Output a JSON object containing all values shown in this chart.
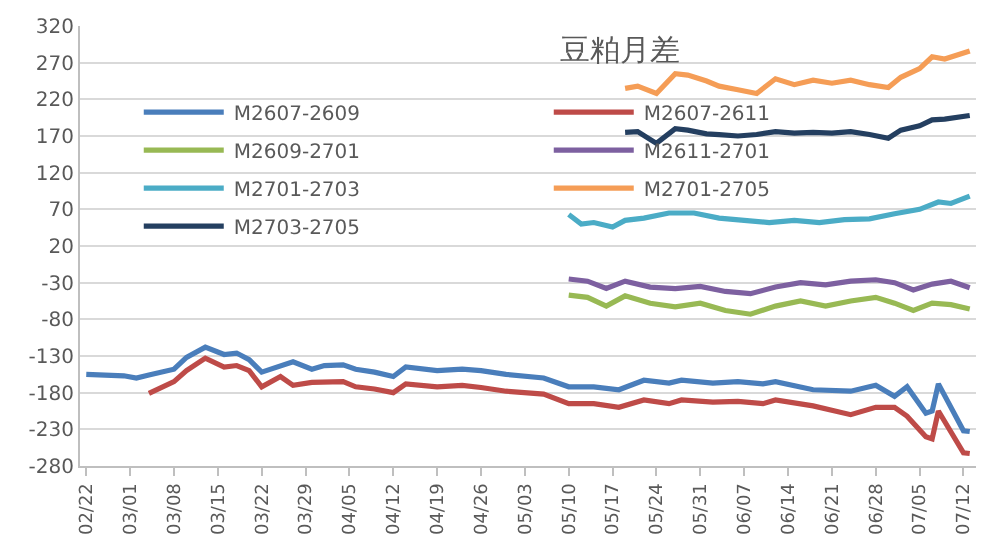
{
  "chart_data": {
    "type": "line",
    "title": "豆粕月差",
    "ylim": [
      -280,
      320
    ],
    "yticks": [
      -280,
      -230,
      -180,
      -130,
      -80,
      -30,
      20,
      70,
      120,
      170,
      220,
      270,
      320
    ],
    "xlim": [
      "--02-21",
      "--07-14"
    ],
    "xticks": [
      {
        "value": "--02-22",
        "label": "02/22"
      },
      {
        "value": "--03-01",
        "label": "03/01"
      },
      {
        "value": "--03-08",
        "label": "03/08"
      },
      {
        "value": "--03-15",
        "label": "03/15"
      },
      {
        "value": "--03-22",
        "label": "03/22"
      },
      {
        "value": "--03-29",
        "label": "03/29"
      },
      {
        "value": "--04-05",
        "label": "04/05"
      },
      {
        "value": "--04-12",
        "label": "04/12"
      },
      {
        "value": "--04-19",
        "label": "04/19"
      },
      {
        "value": "--04-26",
        "label": "04/26"
      },
      {
        "value": "--05-03",
        "label": "05/03"
      },
      {
        "value": "--05-10",
        "label": "05/10"
      },
      {
        "value": "--05-17",
        "label": "05/17"
      },
      {
        "value": "--05-24",
        "label": "05/24"
      },
      {
        "value": "--05-31",
        "label": "05/31"
      },
      {
        "value": "--06-07",
        "label": "06/07"
      },
      {
        "value": "--06-14",
        "label": "06/14"
      },
      {
        "value": "--06-21",
        "label": "06/21"
      },
      {
        "value": "--06-28",
        "label": "06/28"
      },
      {
        "value": "--07-05",
        "label": "07/05"
      },
      {
        "value": "--07-12",
        "label": "07/12"
      }
    ],
    "grid": "y",
    "legend": "top left",
    "marker": "none",
    "line_style": "solid",
    "series": [
      {
        "name": "M2607-2609",
        "color": "#4a7ebb",
        "x": [
          "--02-22",
          "--02-25",
          "--02-28",
          "--03-02",
          "--03-04",
          "--03-08",
          "--03-10",
          "--03-13",
          "--03-16",
          "--03-18",
          "--03-20",
          "--03-22",
          "--03-27",
          "--03-30",
          "--04-01",
          "--04-04",
          "--04-06",
          "--04-09",
          "--04-12",
          "--04-14",
          "--04-19",
          "--04-23",
          "--04-26",
          "--04-30",
          "--05-06",
          "--05-10",
          "--05-14",
          "--05-18",
          "--05-22",
          "--05-26",
          "--05-28",
          "--06-02",
          "--06-06",
          "--06-10",
          "--06-12",
          "--06-18",
          "--06-24",
          "--06-28",
          "--07-01",
          "--07-03",
          "--07-06",
          "--07-07",
          "--07-08",
          "--07-12",
          "--07-13"
        ],
        "values": [
          -155,
          -156,
          -157,
          -160,
          -156,
          -148,
          -132,
          -118,
          -128,
          -126,
          -135,
          -152,
          -138,
          -148,
          -143,
          -142,
          -148,
          -152,
          -158,
          -145,
          -150,
          -148,
          -150,
          -155,
          -160,
          -172,
          -172,
          -176,
          -163,
          -167,
          -163,
          -167,
          -165,
          -168,
          -165,
          -176,
          -178,
          -170,
          -185,
          -172,
          -208,
          -205,
          -168,
          -232,
          -233
        ]
      },
      {
        "name": "M2607-2611",
        "color": "#be4b48",
        "x": [
          "--03-04",
          "--03-08",
          "--03-10",
          "--03-13",
          "--03-16",
          "--03-18",
          "--03-20",
          "--03-22",
          "--03-25",
          "--03-27",
          "--03-30",
          "--04-04",
          "--04-06",
          "--04-09",
          "--04-12",
          "--04-14",
          "--04-19",
          "--04-23",
          "--04-26",
          "--04-30",
          "--05-06",
          "--05-10",
          "--05-14",
          "--05-18",
          "--05-22",
          "--05-26",
          "--05-28",
          "--06-02",
          "--06-06",
          "--06-10",
          "--06-12",
          "--06-18",
          "--06-24",
          "--06-28",
          "--07-01",
          "--07-03",
          "--07-06",
          "--07-07",
          "--07-08",
          "--07-12",
          "--07-13"
        ],
        "values": [
          -181,
          -165,
          -150,
          -133,
          -145,
          -143,
          -150,
          -172,
          -158,
          -170,
          -166,
          -165,
          -172,
          -175,
          -180,
          -168,
          -172,
          -170,
          -173,
          -178,
          -182,
          -195,
          -195,
          -200,
          -190,
          -195,
          -190,
          -193,
          -192,
          -195,
          -190,
          -198,
          -210,
          -200,
          -200,
          -212,
          -240,
          -243,
          -205,
          -262,
          -263
        ]
      },
      {
        "name": "M2609-2701",
        "color": "#98b954",
        "x": [
          "--05-10",
          "--05-13",
          "--05-16",
          "--05-19",
          "--05-23",
          "--05-27",
          "--05-31",
          "--06-04",
          "--06-08",
          "--06-12",
          "--06-16",
          "--06-20",
          "--06-24",
          "--06-28",
          "--07-01",
          "--07-04",
          "--07-07",
          "--07-10",
          "--07-13"
        ],
        "values": [
          -47,
          -50,
          -62,
          -48,
          -58,
          -63,
          -58,
          -68,
          -73,
          -62,
          -55,
          -62,
          -55,
          -50,
          -58,
          -68,
          -58,
          -60,
          -66
        ]
      },
      {
        "name": "M2611-2701",
        "color": "#7d60a0",
        "x": [
          "--05-10",
          "--05-13",
          "--05-16",
          "--05-19",
          "--05-23",
          "--05-27",
          "--05-31",
          "--06-04",
          "--06-08",
          "--06-12",
          "--06-16",
          "--06-20",
          "--06-24",
          "--06-28",
          "--07-01",
          "--07-04",
          "--07-07",
          "--07-10",
          "--07-13"
        ],
        "values": [
          -25,
          -28,
          -38,
          -28,
          -36,
          -38,
          -35,
          -42,
          -45,
          -36,
          -30,
          -33,
          -28,
          -26,
          -30,
          -40,
          -32,
          -28,
          -37
        ]
      },
      {
        "name": "M2701-2703",
        "color": "#4bacc6",
        "x": [
          "--05-10",
          "--05-12",
          "--05-14",
          "--05-17",
          "--05-19",
          "--05-22",
          "--05-26",
          "--05-30",
          "--06-03",
          "--06-07",
          "--06-11",
          "--06-15",
          "--06-19",
          "--06-23",
          "--06-27",
          "--07-01",
          "--07-05",
          "--07-08",
          "--07-10",
          "--07-13"
        ],
        "values": [
          63,
          50,
          52,
          46,
          55,
          58,
          65,
          65,
          58,
          55,
          52,
          55,
          52,
          56,
          57,
          64,
          70,
          80,
          78,
          88
        ]
      },
      {
        "name": "M2701-2705",
        "color": "#f59d56",
        "x": [
          "--05-19",
          "--05-21",
          "--05-24",
          "--05-27",
          "--05-29",
          "--06-01",
          "--06-03",
          "--06-06",
          "--06-09",
          "--06-12",
          "--06-15",
          "--06-18",
          "--06-21",
          "--06-24",
          "--06-27",
          "--06-30",
          "--07-02",
          "--07-05",
          "--07-07",
          "--07-09",
          "--07-13"
        ],
        "values": [
          235,
          238,
          228,
          255,
          253,
          245,
          238,
          233,
          228,
          248,
          240,
          246,
          242,
          246,
          240,
          236,
          250,
          262,
          278,
          275,
          286
        ]
      },
      {
        "name": "M2703-2705",
        "color": "#243f60",
        "x": [
          "--05-19",
          "--05-21",
          "--05-24",
          "--05-27",
          "--05-29",
          "--06-01",
          "--06-03",
          "--06-06",
          "--06-09",
          "--06-12",
          "--06-15",
          "--06-18",
          "--06-21",
          "--06-24",
          "--06-27",
          "--06-30",
          "--07-02",
          "--07-05",
          "--07-07",
          "--07-09",
          "--07-13"
        ],
        "values": [
          175,
          176,
          160,
          180,
          178,
          173,
          172,
          170,
          172,
          176,
          174,
          175,
          174,
          176,
          172,
          167,
          178,
          184,
          192,
          193,
          198
        ]
      }
    ]
  }
}
